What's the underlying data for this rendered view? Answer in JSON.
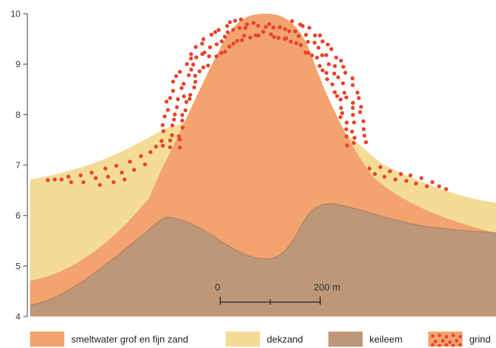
{
  "axis": {
    "ticks": [
      "10",
      "9",
      "8",
      "7",
      "6",
      "5",
      "4"
    ]
  },
  "scale_bar": {
    "start_label": "0",
    "end_label": "200 m"
  },
  "colors": {
    "smeltwater": "#f3a36e",
    "dekzand": "#f4dc96",
    "keileem": "#bd9778",
    "grind": "#e8432c"
  },
  "legend": [
    {
      "key": "smeltwater",
      "label": "smeltwater grof en fijn zand",
      "icon": "orange-swatch"
    },
    {
      "key": "dekzand",
      "label": "dekzand",
      "icon": "yellow-swatch"
    },
    {
      "key": "keileem",
      "label": "keileem",
      "icon": "brown-swatch"
    },
    {
      "key": "grind",
      "label": "grind",
      "icon": "red-dots-swatch"
    }
  ]
}
